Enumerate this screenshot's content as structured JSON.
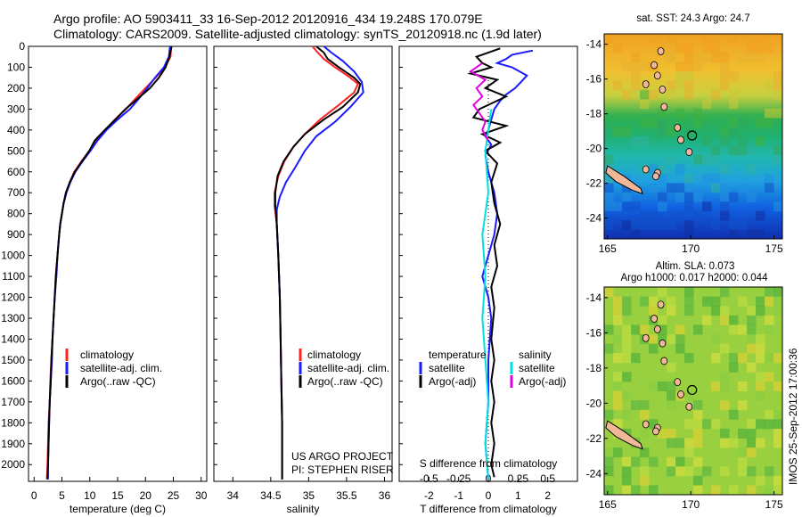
{
  "header": {
    "line1": "Argo profile: AO 5903411_33 16-Sep-2012 20120916_434 19.248S 170.079E",
    "line2": "Climatology: CARS2009. Satellite-adjusted climatology: synTS_20120918.nc (1.9d later)"
  },
  "colors": {
    "climatology": "#ff2020",
    "satellite": "#1a1aff",
    "argo": "#000000",
    "t_satellite": "#00e0e0",
    "t_argo": "#e000e0"
  },
  "chart_data": [
    {
      "type": "line",
      "xlabel": "temperature (deg C)",
      "ylabel": "",
      "xlim": [
        -1,
        31
      ],
      "ylim": [
        2080,
        0
      ],
      "xticks": [
        0,
        5,
        10,
        15,
        20,
        25,
        30
      ],
      "yticks": [
        0,
        100,
        200,
        300,
        400,
        500,
        600,
        700,
        800,
        900,
        1000,
        1100,
        1200,
        1300,
        1400,
        1500,
        1600,
        1700,
        1800,
        1900,
        2000
      ],
      "legend": [
        "climatology",
        "satellite-adj. clim.",
        "Argo(..raw -QC)"
      ],
      "series": [
        {
          "name": "climatology",
          "points": [
            [
              24.6,
              0
            ],
            [
              24.5,
              50
            ],
            [
              23.5,
              100
            ],
            [
              21.8,
              150
            ],
            [
              20.0,
              200
            ],
            [
              18.2,
              250
            ],
            [
              16.5,
              300
            ],
            [
              14.5,
              350
            ],
            [
              12.8,
              400
            ],
            [
              11.2,
              450
            ],
            [
              9.9,
              500
            ],
            [
              8.5,
              550
            ],
            [
              7.2,
              600
            ],
            [
              6.4,
              650
            ],
            [
              5.8,
              700
            ],
            [
              5.3,
              750
            ],
            [
              5.0,
              800
            ],
            [
              4.7,
              850
            ],
            [
              4.5,
              900
            ],
            [
              4.2,
              1000
            ],
            [
              3.9,
              1100
            ],
            [
              3.7,
              1200
            ],
            [
              3.5,
              1300
            ],
            [
              3.3,
              1400
            ],
            [
              3.1,
              1500
            ],
            [
              2.9,
              1600
            ],
            [
              2.8,
              1700
            ],
            [
              2.6,
              1800
            ],
            [
              2.5,
              1900
            ],
            [
              2.4,
              2000
            ],
            [
              2.3,
              2070
            ]
          ]
        },
        {
          "name": "satellite-adj. clim.",
          "points": [
            [
              24.4,
              0
            ],
            [
              24.2,
              50
            ],
            [
              23.3,
              100
            ],
            [
              21.7,
              150
            ],
            [
              20.3,
              200
            ],
            [
              18.8,
              250
            ],
            [
              17.2,
              300
            ],
            [
              15.0,
              350
            ],
            [
              13.0,
              400
            ],
            [
              11.4,
              450
            ],
            [
              10.1,
              500
            ],
            [
              8.7,
              550
            ],
            [
              7.4,
              600
            ],
            [
              6.5,
              650
            ],
            [
              5.8,
              700
            ],
            [
              5.3,
              750
            ],
            [
              5.0,
              800
            ],
            [
              4.7,
              850
            ],
            [
              4.5,
              900
            ],
            [
              4.2,
              1000
            ],
            [
              4.0,
              1100
            ],
            [
              3.7,
              1200
            ],
            [
              3.5,
              1300
            ],
            [
              3.3,
              1400
            ],
            [
              3.2,
              1500
            ],
            [
              3.0,
              1600
            ],
            [
              2.8,
              1700
            ],
            [
              2.7,
              1800
            ],
            [
              2.6,
              1900
            ],
            [
              2.5,
              2000
            ],
            [
              2.5,
              2070
            ]
          ]
        },
        {
          "name": "Argo(..raw -QC)",
          "points": [
            [
              24.7,
              0
            ],
            [
              24.3,
              50
            ],
            [
              23.6,
              100
            ],
            [
              22.4,
              150
            ],
            [
              20.8,
              200
            ],
            [
              18.6,
              250
            ],
            [
              16.4,
              300
            ],
            [
              14.6,
              350
            ],
            [
              12.7,
              400
            ],
            [
              10.9,
              450
            ],
            [
              9.9,
              500
            ],
            [
              8.6,
              550
            ],
            [
              7.3,
              600
            ],
            [
              6.4,
              650
            ],
            [
              5.7,
              700
            ],
            [
              5.3,
              750
            ],
            [
              5.0,
              800
            ],
            [
              4.7,
              850
            ],
            [
              4.5,
              900
            ],
            [
              4.2,
              1000
            ],
            [
              3.9,
              1100
            ],
            [
              3.7,
              1200
            ],
            [
              3.5,
              1300
            ],
            [
              3.3,
              1400
            ],
            [
              3.1,
              1500
            ],
            [
              3.0,
              1600
            ],
            [
              2.8,
              1700
            ],
            [
              2.7,
              1800
            ],
            [
              2.6,
              1900
            ],
            [
              2.5,
              2000
            ],
            [
              2.4,
              2070
            ]
          ]
        }
      ]
    },
    {
      "type": "line",
      "xlabel": "salinity",
      "xlim": [
        33.75,
        36.1
      ],
      "ylim": [
        2080,
        0
      ],
      "xticks": [
        34,
        34.5,
        35,
        35.5,
        36
      ],
      "legend": [
        "climatology",
        "satellite-adj. clim.",
        "Argo(..raw -QC)"
      ],
      "annotation": [
        "US ARGO PROJECT",
        "PI: STEPHEN RISER"
      ],
      "series": [
        {
          "name": "climatology",
          "points": [
            [
              35.05,
              0
            ],
            [
              35.12,
              30
            ],
            [
              35.2,
              60
            ],
            [
              35.35,
              100
            ],
            [
              35.55,
              150
            ],
            [
              35.65,
              180
            ],
            [
              35.6,
              220
            ],
            [
              35.4,
              280
            ],
            [
              35.15,
              350
            ],
            [
              34.95,
              420
            ],
            [
              34.8,
              480
            ],
            [
              34.68,
              550
            ],
            [
              34.6,
              620
            ],
            [
              34.55,
              700
            ],
            [
              34.55,
              760
            ],
            [
              34.58,
              850
            ],
            [
              34.6,
              1000
            ],
            [
              34.62,
              1200
            ],
            [
              34.63,
              1400
            ],
            [
              34.64,
              1600
            ],
            [
              34.65,
              1800
            ],
            [
              34.65,
              2070
            ]
          ]
        },
        {
          "name": "satellite-adj. clim.",
          "points": [
            [
              35.2,
              0
            ],
            [
              35.3,
              30
            ],
            [
              35.45,
              70
            ],
            [
              35.6,
              120
            ],
            [
              35.7,
              170
            ],
            [
              35.72,
              220
            ],
            [
              35.55,
              290
            ],
            [
              35.35,
              360
            ],
            [
              35.1,
              430
            ],
            [
              34.95,
              500
            ],
            [
              34.82,
              580
            ],
            [
              34.7,
              650
            ],
            [
              34.62,
              720
            ],
            [
              34.58,
              780
            ],
            [
              34.58,
              850
            ],
            [
              34.6,
              1000
            ],
            [
              34.62,
              1200
            ],
            [
              34.63,
              1400
            ],
            [
              34.64,
              1600
            ],
            [
              34.65,
              1800
            ],
            [
              34.65,
              2070
            ]
          ]
        },
        {
          "name": "Argo(..raw -QC)",
          "points": [
            [
              35.1,
              0
            ],
            [
              35.2,
              30
            ],
            [
              35.25,
              60
            ],
            [
              35.4,
              100
            ],
            [
              35.6,
              150
            ],
            [
              35.68,
              180
            ],
            [
              35.65,
              220
            ],
            [
              35.45,
              290
            ],
            [
              35.2,
              350
            ],
            [
              34.95,
              420
            ],
            [
              34.8,
              480
            ],
            [
              34.67,
              550
            ],
            [
              34.59,
              620
            ],
            [
              34.56,
              700
            ],
            [
              34.56,
              760
            ],
            [
              34.58,
              850
            ],
            [
              34.6,
              1000
            ],
            [
              34.62,
              1200
            ],
            [
              34.63,
              1400
            ],
            [
              34.64,
              1600
            ],
            [
              34.65,
              1800
            ],
            [
              34.65,
              2070
            ]
          ]
        }
      ]
    },
    {
      "type": "line",
      "xlabel": "T difference from climatology",
      "xlabel2": "S difference from climatology",
      "xlim": [
        -3,
        3
      ],
      "ylim": [
        2080,
        0
      ],
      "xticks": [
        -2,
        -1,
        0,
        1,
        2
      ],
      "xticks2": [
        -0.5,
        -0.25,
        0,
        0.25,
        0.5
      ],
      "legend_left_title": "temperature",
      "legend_right_title": "salinity",
      "legend_left": [
        "satellite",
        "Argo(-adj)"
      ],
      "legend_right": [
        "satellite",
        "Argo(-adj)"
      ],
      "series": [
        {
          "name": "T satellite",
          "points": [
            [
              1.5,
              20
            ],
            [
              0.8,
              40
            ],
            [
              0.6,
              60
            ],
            [
              0.3,
              80
            ],
            [
              0.8,
              100
            ],
            [
              1.3,
              140
            ],
            [
              1.1,
              170
            ],
            [
              0.9,
              200
            ],
            [
              0.6,
              230
            ],
            [
              0.4,
              260
            ],
            [
              0.2,
              300
            ],
            [
              0.1,
              350
            ],
            [
              0.0,
              400
            ],
            [
              -0.1,
              430
            ],
            [
              0.1,
              470
            ],
            [
              -0.1,
              520
            ],
            [
              0.0,
              600
            ],
            [
              0.2,
              700
            ],
            [
              0.3,
              800
            ],
            [
              0.2,
              900
            ],
            [
              0.0,
              1000
            ],
            [
              -0.2,
              1100
            ],
            [
              0.0,
              1200
            ],
            [
              0.1,
              1300
            ],
            [
              0.0,
              1500
            ],
            [
              0.0,
              1700
            ],
            [
              -0.1,
              1900
            ],
            [
              0.0,
              2070
            ]
          ]
        },
        {
          "name": "T Argo(-adj)",
          "points": [
            [
              0.4,
              10
            ],
            [
              -0.4,
              50
            ],
            [
              -0.2,
              80
            ],
            [
              0.1,
              100
            ],
            [
              -0.6,
              130
            ],
            [
              0.3,
              160
            ],
            [
              -0.1,
              200
            ],
            [
              0.6,
              240
            ],
            [
              -0.3,
              300
            ],
            [
              -0.5,
              340
            ],
            [
              0.6,
              380
            ],
            [
              -0.2,
              420
            ],
            [
              0.4,
              460
            ],
            [
              -0.1,
              500
            ],
            [
              0.3,
              560
            ],
            [
              0.1,
              650
            ],
            [
              0.2,
              750
            ],
            [
              0.4,
              850
            ],
            [
              0.2,
              950
            ],
            [
              0.3,
              1050
            ],
            [
              0.1,
              1150
            ],
            [
              0.2,
              1250
            ],
            [
              0.1,
              1400
            ],
            [
              0.2,
              1500
            ],
            [
              0.1,
              1600
            ],
            [
              0.2,
              1700
            ],
            [
              0.1,
              1800
            ],
            [
              0.2,
              1900
            ],
            [
              0.1,
              2000
            ],
            [
              0.2,
              2060
            ]
          ]
        },
        {
          "name": "S satellite",
          "points": [
            [
              0.1,
              300
            ],
            [
              -0.1,
              500
            ],
            [
              0.0,
              700
            ],
            [
              -0.2,
              900
            ],
            [
              -0.1,
              1100
            ],
            [
              -0.2,
              1300
            ],
            [
              -0.1,
              1500
            ],
            [
              0.0,
              1700
            ],
            [
              -0.1,
              1900
            ],
            [
              0.0,
              2070
            ]
          ]
        },
        {
          "name": "S Argo(-adj)",
          "points": [
            [
              -0.2,
              80
            ],
            [
              -0.6,
              120
            ],
            [
              -0.1,
              160
            ],
            [
              -0.4,
              200
            ],
            [
              -0.2,
              240
            ],
            [
              -0.5,
              280
            ],
            [
              -0.3,
              320
            ],
            [
              -0.1,
              360
            ],
            [
              -0.2,
              400
            ],
            [
              0.0,
              450
            ]
          ]
        }
      ]
    },
    {
      "type": "heatmap",
      "title": "sat. SST: 24.3 Argo: 24.7",
      "xlim": [
        164.8,
        175.5
      ],
      "ylim": [
        -25.2,
        -13.4
      ],
      "xticks": [
        165,
        170,
        175
      ],
      "yticks": [
        -14,
        -16,
        -18,
        -20,
        -22,
        -24
      ],
      "marker": [
        170.079,
        -19.248
      ]
    },
    {
      "type": "heatmap",
      "title": "Altim. SLA: 0.073",
      "subtitle": "Argo h1000: 0.017 h2000: 0.044",
      "xlim": [
        164.8,
        175.5
      ],
      "ylim": [
        -25.2,
        -13.4
      ],
      "xticks": [
        165,
        170,
        175
      ],
      "yticks": [
        -14,
        -16,
        -18,
        -20,
        -22,
        -24
      ],
      "marker": [
        170.079,
        -19.248
      ]
    }
  ],
  "side_label": "IMOS 25-Sep-2012 17:00:36"
}
